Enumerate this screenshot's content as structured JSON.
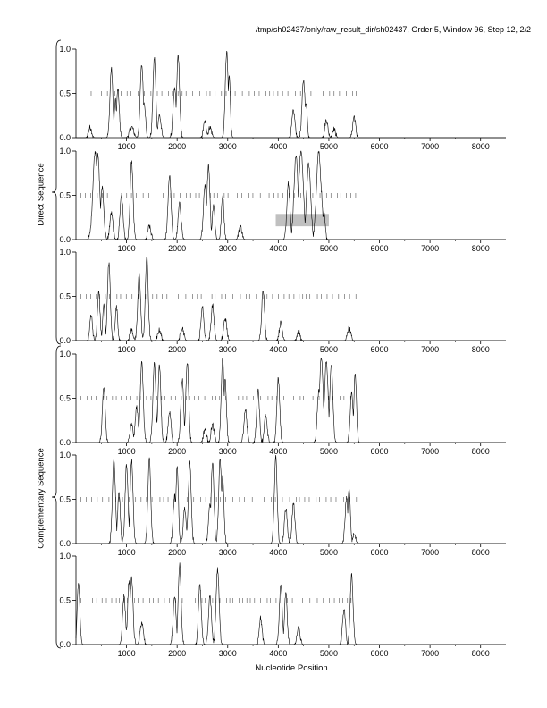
{
  "header": {
    "title": "/tmp/sh02437/only/raw_result_dir/sh02437, Order 5, Window 96, Step 12, 2/2"
  },
  "axis": {
    "xlabel": "Nucleotide Position"
  },
  "groups": {
    "direct_label": "Direct Sequence",
    "complementary_label": "Complementary Sequence"
  },
  "style": {
    "line_color": "#000000",
    "highlight_color": "#c0c0c0"
  },
  "chart_data": [
    {
      "type": "line",
      "title": "",
      "xlabel": "",
      "ylabel": "",
      "xlim": [
        0,
        8500
      ],
      "ylim": [
        0,
        1.0
      ],
      "xticks": [
        1000,
        2000,
        3000,
        4000,
        5000,
        6000,
        7000,
        8000
      ],
      "yticks": [
        0.0,
        0.5,
        1.0
      ],
      "ytick_labels": [
        "0.0",
        "0.5",
        "1.0"
      ],
      "x_tick_labels_shown": true,
      "threshold": {
        "y": 0.5,
        "x_range": [
          300,
          5550
        ]
      },
      "peaks": [
        [
          280,
          0.12,
          30
        ],
        [
          700,
          0.78,
          28
        ],
        [
          780,
          0.42,
          22
        ],
        [
          830,
          0.55,
          26
        ],
        [
          1100,
          0.12,
          40
        ],
        [
          1300,
          0.82,
          30
        ],
        [
          1350,
          0.4,
          25
        ],
        [
          1550,
          0.9,
          28
        ],
        [
          1650,
          0.25,
          30
        ],
        [
          1950,
          0.55,
          30
        ],
        [
          2020,
          0.93,
          28
        ],
        [
          2550,
          0.18,
          30
        ],
        [
          2650,
          0.12,
          30
        ],
        [
          2980,
          0.97,
          28
        ],
        [
          3030,
          0.7,
          22
        ],
        [
          4300,
          0.3,
          30
        ],
        [
          4500,
          0.65,
          30
        ],
        [
          4550,
          0.4,
          22
        ],
        [
          4950,
          0.2,
          30
        ],
        [
          5100,
          0.1,
          30
        ],
        [
          5500,
          0.24,
          28
        ]
      ]
    },
    {
      "type": "line",
      "title": "",
      "xlabel": "",
      "ylabel": "",
      "xlim": [
        0,
        8500
      ],
      "ylim": [
        0,
        1.0
      ],
      "xticks": [
        1000,
        2000,
        3000,
        4000,
        5000,
        6000,
        7000,
        8000
      ],
      "yticks": [
        0.0,
        0.5,
        1.0
      ],
      "ytick_labels": [
        "0.0",
        "0.5",
        "1.0"
      ],
      "x_tick_labels_shown": true,
      "threshold": {
        "y": 0.5,
        "x_range": [
          100,
          5550
        ]
      },
      "highlight": {
        "x_range": [
          3950,
          5000
        ],
        "y_range": [
          0.15,
          0.29
        ]
      },
      "peaks": [
        [
          380,
          1.0,
          45
        ],
        [
          430,
          0.95,
          40
        ],
        [
          520,
          0.6,
          30
        ],
        [
          700,
          0.3,
          30
        ],
        [
          900,
          0.5,
          30
        ],
        [
          1100,
          0.88,
          28
        ],
        [
          1450,
          0.15,
          30
        ],
        [
          1850,
          0.72,
          30
        ],
        [
          2050,
          0.4,
          30
        ],
        [
          2550,
          0.6,
          30
        ],
        [
          2620,
          0.85,
          28
        ],
        [
          2720,
          0.4,
          25
        ],
        [
          2900,
          0.5,
          25
        ],
        [
          3250,
          0.15,
          30
        ],
        [
          4200,
          0.65,
          30
        ],
        [
          4350,
          0.95,
          40
        ],
        [
          4450,
          1.0,
          45
        ],
        [
          4600,
          0.85,
          40
        ],
        [
          4800,
          1.0,
          45
        ],
        [
          4850,
          0.55,
          25
        ],
        [
          4900,
          0.3,
          25
        ]
      ]
    },
    {
      "type": "line",
      "title": "",
      "xlabel": "",
      "ylabel": "",
      "xlim": [
        0,
        8500
      ],
      "ylim": [
        0,
        1.0
      ],
      "xticks": [
        1000,
        2000,
        3000,
        4000,
        5000,
        6000,
        7000,
        8000
      ],
      "yticks": [
        0.0,
        0.5,
        1.0
      ],
      "ytick_labels": [
        "0.0",
        "0.5",
        "1.0"
      ],
      "x_tick_labels_shown": true,
      "threshold": {
        "y": 0.5,
        "x_range": [
          100,
          5550
        ]
      },
      "peaks": [
        [
          300,
          0.3,
          25
        ],
        [
          450,
          0.55,
          25
        ],
        [
          550,
          0.4,
          22
        ],
        [
          650,
          0.88,
          28
        ],
        [
          800,
          0.38,
          25
        ],
        [
          1100,
          0.12,
          30
        ],
        [
          1250,
          0.75,
          28
        ],
        [
          1400,
          0.95,
          28
        ],
        [
          1650,
          0.12,
          30
        ],
        [
          2100,
          0.15,
          30
        ],
        [
          2500,
          0.38,
          28
        ],
        [
          2700,
          0.4,
          28
        ],
        [
          2950,
          0.25,
          30
        ],
        [
          3700,
          0.58,
          28
        ],
        [
          4050,
          0.2,
          30
        ],
        [
          4400,
          0.1,
          30
        ],
        [
          5400,
          0.14,
          30
        ]
      ]
    },
    {
      "type": "line",
      "title": "",
      "xlabel": "",
      "ylabel": "",
      "xlim": [
        0,
        8500
      ],
      "ylim": [
        0,
        1.0
      ],
      "xticks": [
        1000,
        2000,
        3000,
        4000,
        5000,
        6000,
        7000,
        8000
      ],
      "yticks": [
        0.0,
        0.5,
        1.0
      ],
      "ytick_labels": [
        "0.0",
        "0.5",
        "1.0"
      ],
      "x_tick_labels_shown": true,
      "threshold": {
        "y": 0.5,
        "x_range": [
          100,
          5550
        ]
      },
      "peaks": [
        [
          550,
          0.62,
          28
        ],
        [
          1100,
          0.2,
          30
        ],
        [
          1200,
          0.4,
          28
        ],
        [
          1300,
          0.9,
          30
        ],
        [
          1550,
          0.9,
          28
        ],
        [
          1650,
          0.88,
          28
        ],
        [
          1850,
          0.35,
          28
        ],
        [
          2100,
          0.72,
          28
        ],
        [
          2200,
          0.92,
          28
        ],
        [
          2550,
          0.15,
          30
        ],
        [
          2700,
          0.2,
          30
        ],
        [
          2900,
          0.95,
          28
        ],
        [
          2950,
          0.7,
          25
        ],
        [
          3350,
          0.38,
          28
        ],
        [
          3600,
          0.6,
          28
        ],
        [
          3750,
          0.3,
          28
        ],
        [
          4000,
          0.72,
          28
        ],
        [
          4800,
          0.58,
          30
        ],
        [
          4850,
          0.97,
          35
        ],
        [
          4950,
          0.92,
          35
        ],
        [
          5050,
          0.9,
          30
        ],
        [
          5450,
          0.55,
          28
        ],
        [
          5520,
          0.78,
          25
        ]
      ]
    },
    {
      "type": "line",
      "title": "",
      "xlabel": "",
      "ylabel": "",
      "xlim": [
        0,
        8500
      ],
      "ylim": [
        0,
        1.0
      ],
      "xticks": [
        1000,
        2000,
        3000,
        4000,
        5000,
        6000,
        7000,
        8000
      ],
      "yticks": [
        0.0,
        0.5,
        1.0
      ],
      "ytick_labels": [
        "0.0",
        "0.5",
        "1.0"
      ],
      "x_tick_labels_shown": true,
      "threshold": {
        "y": 0.5,
        "x_range": [
          100,
          5550
        ]
      },
      "peaks": [
        [
          750,
          0.95,
          30
        ],
        [
          850,
          0.6,
          25
        ],
        [
          1000,
          0.9,
          28
        ],
        [
          1100,
          0.95,
          28
        ],
        [
          1450,
          0.95,
          28
        ],
        [
          1950,
          0.55,
          28
        ],
        [
          2000,
          0.88,
          25
        ],
        [
          2150,
          0.4,
          28
        ],
        [
          2250,
          0.92,
          28
        ],
        [
          2650,
          0.45,
          28
        ],
        [
          2700,
          0.92,
          28
        ],
        [
          2850,
          0.95,
          28
        ],
        [
          2900,
          0.75,
          25
        ],
        [
          3950,
          0.98,
          28
        ],
        [
          4150,
          0.4,
          28
        ],
        [
          4300,
          0.45,
          28
        ],
        [
          5350,
          0.52,
          28
        ],
        [
          5400,
          0.6,
          25
        ],
        [
          5500,
          0.1,
          30
        ]
      ]
    },
    {
      "type": "line",
      "title": "",
      "xlabel": "Nucleotide Position",
      "ylabel": "",
      "xlim": [
        0,
        8500
      ],
      "ylim": [
        0,
        1.0
      ],
      "xticks": [
        1000,
        2000,
        3000,
        4000,
        5000,
        6000,
        7000,
        8000
      ],
      "yticks": [
        0.0,
        0.5,
        1.0
      ],
      "ytick_labels": [
        "0.0",
        "0.5",
        "1.0"
      ],
      "x_tick_labels_shown": true,
      "threshold": {
        "y": 0.5,
        "x_range": [
          100,
          5550
        ]
      },
      "peaks": [
        [
          50,
          0.7,
          25
        ],
        [
          950,
          0.55,
          28
        ],
        [
          1050,
          0.72,
          28
        ],
        [
          1100,
          0.75,
          28
        ],
        [
          1300,
          0.25,
          30
        ],
        [
          1950,
          0.55,
          28
        ],
        [
          2050,
          0.9,
          28
        ],
        [
          2450,
          0.68,
          28
        ],
        [
          2650,
          0.55,
          28
        ],
        [
          2800,
          0.85,
          30
        ],
        [
          3650,
          0.3,
          28
        ],
        [
          4050,
          0.68,
          28
        ],
        [
          4150,
          0.6,
          25
        ],
        [
          4400,
          0.18,
          30
        ],
        [
          5300,
          0.4,
          28
        ],
        [
          5450,
          0.78,
          28
        ]
      ]
    }
  ]
}
